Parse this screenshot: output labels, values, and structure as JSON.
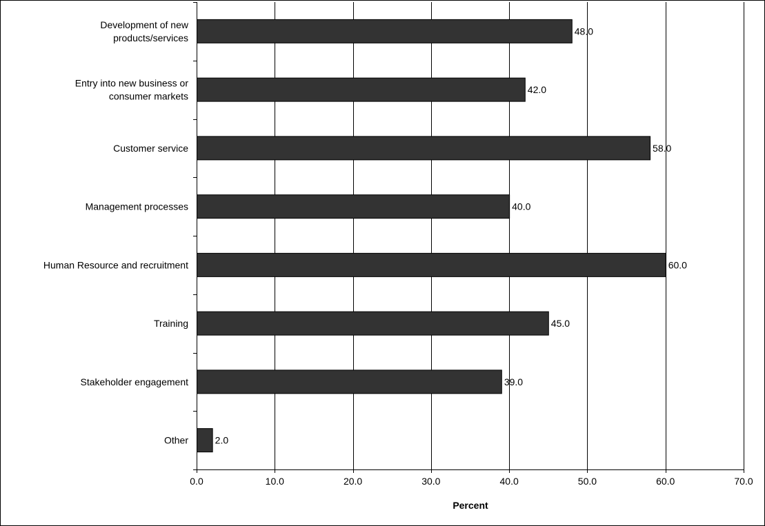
{
  "chart_data": {
    "type": "bar",
    "orientation": "horizontal",
    "categories": [
      [
        "Development of new",
        "products/services"
      ],
      [
        "Entry into new business or",
        "consumer markets"
      ],
      [
        "Customer service"
      ],
      [
        "Management processes"
      ],
      [
        "Human Resource and recruitment"
      ],
      [
        "Training"
      ],
      [
        "Stakeholder engagement"
      ],
      [
        "Other"
      ]
    ],
    "values": [
      48.0,
      42.0,
      58.0,
      40.0,
      60.0,
      45.0,
      39.0,
      2.0
    ],
    "value_labels": [
      "48.0",
      "42.0",
      "58.0",
      "40.0",
      "60.0",
      "45.0",
      "39.0",
      "2.0"
    ],
    "xticks": [
      "0.0",
      "10.0",
      "20.0",
      "30.0",
      "40.0",
      "50.0",
      "60.0",
      "70.0"
    ],
    "xlim": [
      0,
      70
    ],
    "xlabel": "Percent",
    "ylabel": "",
    "title": "",
    "grid": "vertical",
    "legend": "none",
    "bar_color": "#333333",
    "bar_stroke": "#000000",
    "grid_color": "#000000"
  }
}
